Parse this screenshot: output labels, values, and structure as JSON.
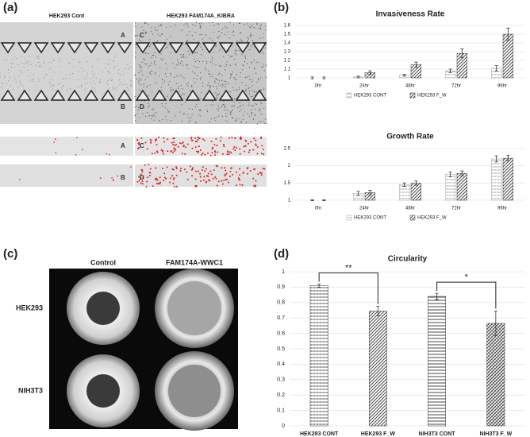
{
  "panels": {
    "a": {
      "label": "(a)",
      "titles": [
        "HEK293 Cont",
        "HEK293 FAM174A_KIBRA"
      ],
      "image_labels": [
        "A",
        "B",
        "C",
        "D",
        "A",
        "B",
        "C",
        "D"
      ]
    },
    "b": {
      "label": "(b)"
    },
    "c": {
      "label": "(c)",
      "columns": [
        "Control",
        "FAM174A-WWC1"
      ],
      "rows": [
        "HEK293",
        "NIH3T3"
      ]
    },
    "d": {
      "label": "(d)"
    }
  },
  "chart_data": [
    {
      "type": "bar",
      "title": "Invasiveness Rate",
      "categories": [
        "0hr",
        "24hr",
        "48hr",
        "72hr",
        "96hr"
      ],
      "series": [
        {
          "name": "HEK293 CONT",
          "color": "#a0a0a0",
          "values": [
            1.0,
            1.01,
            1.03,
            1.08,
            1.11
          ],
          "errors": [
            0.01,
            0.01,
            0.01,
            0.02,
            0.03
          ]
        },
        {
          "name": "HEK293 F_W",
          "color": "#333333",
          "values": [
            1.0,
            1.06,
            1.15,
            1.28,
            1.5
          ],
          "errors": [
            0.01,
            0.02,
            0.03,
            0.05,
            0.07
          ]
        }
      ],
      "ylim": [
        1,
        1.6
      ],
      "yticks": [
        1,
        1.1,
        1.2,
        1.3,
        1.4,
        1.5,
        1.6
      ],
      "grid": true,
      "legend": "bottom"
    },
    {
      "type": "bar",
      "title": "Growth Rate",
      "categories": [
        "0hr",
        "24hr",
        "48hr",
        "72hr",
        "96hr"
      ],
      "series": [
        {
          "name": "HEK293 CONT",
          "color": "#a0a0a0",
          "values": [
            1.0,
            1.2,
            1.45,
            1.75,
            2.2
          ],
          "errors": [
            0.01,
            0.06,
            0.05,
            0.07,
            0.09
          ]
        },
        {
          "name": "HEK293 F_W",
          "color": "#333333",
          "values": [
            1.0,
            1.22,
            1.5,
            1.78,
            2.22
          ],
          "errors": [
            0.01,
            0.07,
            0.06,
            0.07,
            0.08
          ]
        }
      ],
      "ylim": [
        1,
        2.5
      ],
      "yticks": [
        1,
        1.5,
        2,
        2.5
      ],
      "grid": true,
      "legend": "bottom"
    },
    {
      "type": "bar",
      "title": "Circularity",
      "categories": [
        "HEK293 CONT",
        "HEK293 F_W",
        "NIH3T3 CONT",
        "NIH3T3 F_W"
      ],
      "values": [
        0.91,
        0.745,
        0.84,
        0.665
      ],
      "errors": [
        0.01,
        0.03,
        0.02,
        0.08
      ],
      "color": "#333333",
      "ylim": [
        0,
        1
      ],
      "yticks": [
        0,
        0.1,
        0.2,
        0.3,
        0.4,
        0.5,
        0.6,
        0.7,
        0.8,
        0.9,
        1
      ],
      "grid": true,
      "annotations": [
        "**",
        "*"
      ]
    }
  ]
}
